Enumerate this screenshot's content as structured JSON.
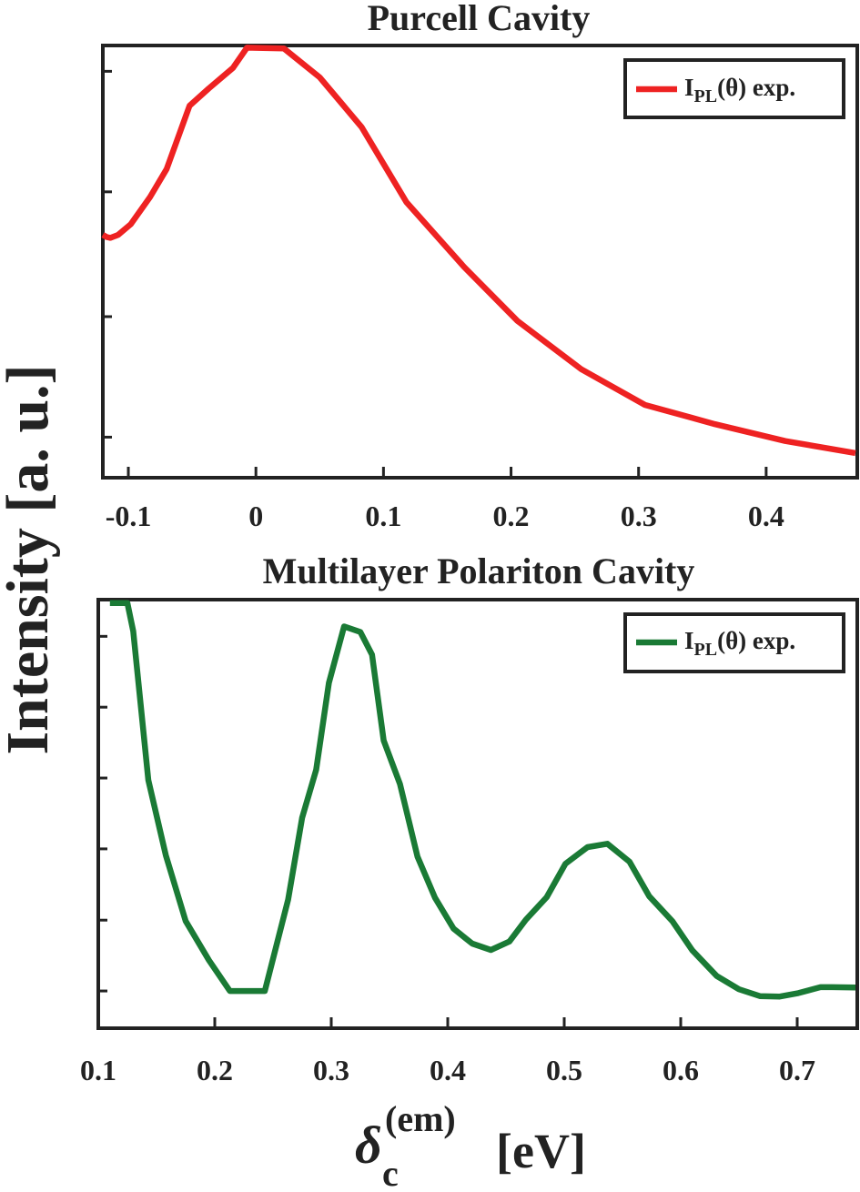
{
  "ylabel": "Intensity [a. u.]",
  "xlabel": {
    "symbol": "δ",
    "subscript": "c",
    "superscript": "(em)",
    "unit": "[eV]"
  },
  "chart_data": [
    {
      "type": "line",
      "title": "Purcell Cavity",
      "xlim": [
        -0.12,
        0.47
      ],
      "ylim": [
        0,
        1
      ],
      "xticks": [
        -0.1,
        0,
        0.1,
        0.2,
        0.3,
        0.4
      ],
      "xtick_labels": [
        "-0.1",
        "0",
        "0.1",
        "0.2",
        "0.3",
        "0.4"
      ],
      "yticks": [
        0.09,
        0.37,
        0.66,
        0.94
      ],
      "grid": false,
      "legend_position": "top-right",
      "legend": {
        "main": "I",
        "sub": "PL",
        "arg": "(θ) exp."
      },
      "series": [
        {
          "color": "#ee2222",
          "x": [
            -0.12,
            -0.117,
            -0.114,
            -0.108,
            -0.098,
            -0.083,
            -0.07,
            -0.052,
            -0.037,
            -0.018,
            -0.007,
            0.022,
            0.05,
            0.083,
            0.118,
            0.163,
            0.205,
            0.255,
            0.305,
            0.36,
            0.415,
            0.47
          ],
          "y": [
            0.56,
            0.555,
            0.553,
            0.56,
            0.585,
            0.648,
            0.713,
            0.86,
            0.9,
            0.948,
            0.995,
            0.993,
            0.926,
            0.81,
            0.636,
            0.486,
            0.36,
            0.248,
            0.165,
            0.12,
            0.081,
            0.053
          ]
        }
      ]
    },
    {
      "type": "line",
      "title": "Multilayer Polariton Cavity",
      "xlim": [
        0.1,
        0.75
      ],
      "ylim": [
        0,
        1
      ],
      "xticks": [
        0.1,
        0.2,
        0.3,
        0.4,
        0.5,
        0.6,
        0.7
      ],
      "xtick_labels": [
        "0.1",
        "0.2",
        "0.3",
        "0.4",
        "0.5",
        "0.6",
        "0.7"
      ],
      "yticks": [
        0.083,
        0.249,
        0.416,
        0.582,
        0.748,
        0.914
      ],
      "grid": false,
      "legend_position": "top-right",
      "legend": {
        "main": "I",
        "sub": "PL",
        "arg": "(θ) exp."
      },
      "series": [
        {
          "color": "#1a7a35",
          "x": [
            0.11,
            0.12,
            0.125,
            0.13,
            0.143,
            0.158,
            0.175,
            0.195,
            0.213,
            0.229,
            0.243,
            0.263,
            0.275,
            0.287,
            0.298,
            0.311,
            0.325,
            0.335,
            0.345,
            0.359,
            0.374,
            0.389,
            0.405,
            0.421,
            0.437,
            0.453,
            0.467,
            0.485,
            0.501,
            0.52,
            0.537,
            0.556,
            0.573,
            0.593,
            0.61,
            0.631,
            0.65,
            0.668,
            0.685,
            0.701,
            0.72,
            0.73,
            0.75
          ],
          "y": [
            0.992,
            0.992,
            0.992,
            0.926,
            0.577,
            0.401,
            0.247,
            0.155,
            0.083,
            0.083,
            0.083,
            0.297,
            0.489,
            0.601,
            0.805,
            0.937,
            0.924,
            0.871,
            0.67,
            0.568,
            0.398,
            0.302,
            0.229,
            0.194,
            0.179,
            0.199,
            0.25,
            0.303,
            0.381,
            0.42,
            0.428,
            0.386,
            0.305,
            0.246,
            0.178,
            0.118,
            0.087,
            0.071,
            0.07,
            0.078,
            0.092,
            0.092,
            0.091
          ]
        }
      ]
    }
  ]
}
